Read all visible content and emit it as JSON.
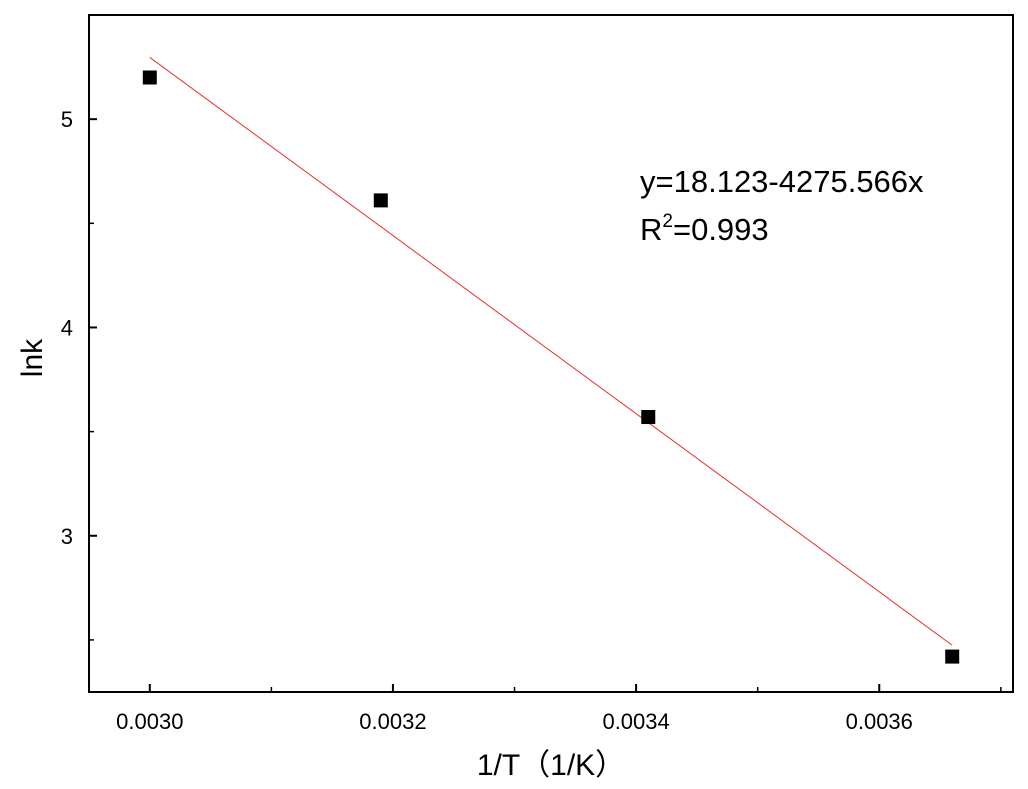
{
  "chart_data": {
    "type": "scatter",
    "xlabel": "1/T（1/K）",
    "ylabel": "lnk",
    "xlim": [
      0.00295,
      0.00371
    ],
    "ylim": [
      2.25,
      5.5
    ],
    "x_ticks": [
      "0.0030",
      "0.0032",
      "0.0034",
      "0.0036"
    ],
    "y_ticks": [
      "3",
      "4",
      "5"
    ],
    "grid": false,
    "series": [
      {
        "marker": "square",
        "color": "#000000",
        "x": [
          0.003,
          0.00319,
          0.00341,
          0.00366
        ],
        "y": [
          5.2,
          4.61,
          3.57,
          2.42
        ]
      }
    ],
    "fit_line": {
      "color": "#e8312a",
      "intercept": 18.123,
      "slope": -4275.566,
      "x_range": [
        0.003,
        0.00366
      ]
    },
    "annotations": {
      "equation": "y=18.123-4275.566x",
      "r2_prefix": "R",
      "r2_sup": "2",
      "r2_value": "=0.993"
    }
  }
}
